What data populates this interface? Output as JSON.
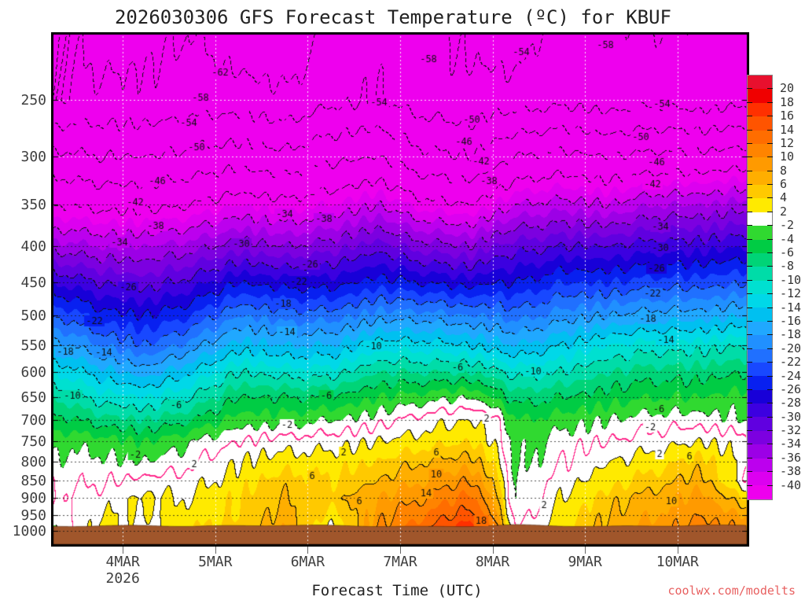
{
  "header": {
    "title": "2026030306 GFS Forecast Temperature (ºC) for KBUF"
  },
  "axes": {
    "xlabel": "Forecast Time (UTC)",
    "x_year": "2026"
  },
  "footer": {
    "watermark": "coolwx.com/modelts"
  },
  "colors": {
    "terrain": "#a0562b",
    "frame": "#000000",
    "zero_line": "#ff2b8d",
    "contour_line": "#101010",
    "watermark": "#e86060",
    "grid_light": "rgba(255,255,255,0.9)",
    "grid_dark": "rgba(20,20,20,0.75)"
  },
  "chart_data": {
    "type": "heatmap",
    "title": "2026030306 GFS Forecast Temperature (ºC) for KBUF",
    "xlabel": "Forecast Time (UTC)",
    "x_unit_hours_range": [
      0,
      180
    ],
    "times": [
      0,
      12,
      24,
      36,
      48,
      60,
      72,
      84,
      96,
      108,
      114,
      120,
      132,
      144,
      156,
      168,
      180
    ],
    "levels": [
      200,
      250,
      300,
      350,
      400,
      450,
      500,
      550,
      600,
      650,
      700,
      750,
      800,
      850,
      900,
      950,
      1000
    ],
    "temps": [
      [
        -57,
        -60,
        -59,
        -58,
        -61,
        -62,
        -57,
        -55,
        -57,
        -59,
        -60,
        -61,
        -55,
        -57,
        -58,
        -57,
        -57
      ],
      [
        -58,
        -57,
        -57,
        -56,
        -56,
        -57,
        -55,
        -54,
        -56,
        -57,
        -56,
        -56,
        -55,
        -56,
        -55,
        -56,
        -55
      ],
      [
        -49,
        -50,
        -50,
        -49,
        -48,
        -49,
        -47,
        -46,
        -49,
        -50,
        -48,
        -46,
        -45,
        -46,
        -45,
        -45,
        -44
      ],
      [
        -42,
        -43,
        -43,
        -42,
        -40,
        -41,
        -40,
        -38,
        -41,
        -42,
        -40,
        -38,
        -37,
        -38,
        -36,
        -36,
        -35
      ],
      [
        -35,
        -36,
        -36,
        -35,
        -33,
        -34,
        -33,
        -31,
        -33,
        -34,
        -32,
        -31,
        -30,
        -30,
        -29,
        -29,
        -28
      ],
      [
        -28,
        -30,
        -31,
        -29,
        -26,
        -27,
        -27,
        -25,
        -26,
        -27,
        -26,
        -26,
        -24,
        -24,
        -23,
        -23,
        -22
      ],
      [
        -22,
        -25,
        -26,
        -24,
        -20,
        -21,
        -21,
        -19,
        -19,
        -20,
        -20,
        -21,
        -19,
        -18,
        -17,
        -17,
        -16
      ],
      [
        -17,
        -20,
        -22,
        -19,
        -15,
        -16,
        -16,
        -13,
        -13,
        -14,
        -15,
        -16,
        -14,
        -12,
        -11,
        -11,
        -10
      ],
      [
        -12,
        -15,
        -17,
        -14,
        -10,
        -11,
        -11,
        -8,
        -8,
        -8,
        -9,
        -11,
        -10,
        -8,
        -7,
        -7,
        -6
      ],
      [
        -8,
        -11,
        -12,
        -10,
        -6,
        -6,
        -6,
        -4,
        -3,
        -2,
        -4,
        -7,
        -6,
        -5,
        -4,
        -4,
        -3
      ],
      [
        -5,
        -7,
        -8,
        -6,
        -3,
        -3,
        -2,
        -1,
        1,
        2,
        1,
        -4,
        -3,
        -2,
        -1,
        -1,
        -2
      ],
      [
        -2.5,
        -3,
        -4,
        -2,
        0,
        1,
        1,
        2,
        3,
        4,
        2,
        -3,
        -1,
        0,
        1,
        2,
        1
      ],
      [
        -1.5,
        -1.5,
        -2,
        -0.5,
        2,
        3,
        3,
        4,
        6,
        7,
        4,
        -3,
        0,
        2,
        3,
        5,
        1
      ],
      [
        -0.5,
        -0.5,
        0.5,
        1,
        3,
        5,
        4,
        6,
        8,
        10,
        6,
        -2.5,
        1,
        3,
        5,
        7,
        0
      ],
      [
        0,
        1,
        2.5,
        2,
        4,
        6,
        5,
        8,
        10,
        13,
        8,
        -2.5,
        2,
        5,
        7,
        9,
        4
      ],
      [
        -1,
        2,
        2,
        3,
        4,
        7,
        3,
        9,
        12,
        15,
        10,
        -1.5,
        3,
        6,
        8,
        10,
        8
      ],
      [
        -2.5,
        3,
        0.5,
        4,
        5,
        8,
        1,
        10,
        14,
        18.5,
        13,
        0,
        4,
        7,
        9,
        11,
        10
      ]
    ],
    "surface_pressure": [
      985,
      984,
      983,
      985,
      984,
      982,
      983,
      985,
      987,
      985,
      983,
      981,
      984,
      986,
      984,
      983,
      982
    ],
    "x_ticks": [
      {
        "hour": 18,
        "label": "4MAR",
        "sub": "2026"
      },
      {
        "hour": 42,
        "label": "5MAR"
      },
      {
        "hour": 66,
        "label": "6MAR"
      },
      {
        "hour": 90,
        "label": "7MAR"
      },
      {
        "hour": 114,
        "label": "8MAR"
      },
      {
        "hour": 138,
        "label": "9MAR"
      },
      {
        "hour": 162,
        "label": "10MAR"
      }
    ],
    "y_ticks": [
      250,
      300,
      350,
      400,
      450,
      500,
      550,
      600,
      650,
      700,
      750,
      800,
      850,
      900,
      950,
      1000
    ],
    "grid_pressures": [
      250,
      300,
      350,
      400,
      450,
      500,
      550,
      600,
      650,
      700,
      750,
      800,
      850,
      900,
      950,
      1000
    ],
    "thresholds": [
      20,
      18,
      16,
      14,
      12,
      10,
      8,
      6,
      4,
      2,
      -2,
      -4,
      -6,
      -8,
      -10,
      -12,
      -14,
      -16,
      -18,
      -20,
      -22,
      -24,
      -26,
      -28,
      -30,
      -32,
      -34,
      -36,
      -38,
      -40
    ],
    "band_colors": [
      "#e8102e",
      "#f00000",
      "#ff3000",
      "#ff5400",
      "#ff6d00",
      "#ff8400",
      "#ff9a00",
      "#ffae00",
      "#ffc900",
      "#ffea00",
      "#ffffff",
      "#30d930",
      "#00cc44",
      "#00d477",
      "#00dca8",
      "#00e0d0",
      "#00d8e8",
      "#00c0f0",
      "#20a8ff",
      "#2090ff",
      "#2070ff",
      "#1848ff",
      "#0820f0",
      "#1800d8",
      "#3c00e0",
      "#6000e0",
      "#7c00e0",
      "#9c00e6",
      "#bc00ee",
      "#dc00f0",
      "#ee00ee"
    ],
    "colorbar": {
      "values": [
        20,
        18,
        16,
        14,
        12,
        10,
        8,
        6,
        4,
        2,
        -2,
        -4,
        -6,
        -8,
        -10,
        -12,
        -14,
        -16,
        -18,
        -20,
        -22,
        -24,
        -26,
        -28,
        -30,
        -32,
        -34,
        -36,
        -38,
        -40
      ]
    },
    "contour_interval_lines": 4,
    "contour_interval_fill": 2,
    "contour_labels": [
      [
        -62,
        280,
        92
      ],
      [
        -58,
        255,
        124
      ],
      [
        -54,
        240,
        156
      ],
      [
        -50,
        250,
        187
      ],
      [
        -46,
        200,
        230
      ],
      [
        -42,
        172,
        257
      ],
      [
        -38,
        198,
        287
      ],
      [
        -34,
        152,
        308
      ],
      [
        -30,
        307,
        310
      ],
      [
        -26,
        163,
        365
      ],
      [
        -22,
        120,
        408
      ],
      [
        -18,
        83,
        447
      ],
      [
        -14,
        132,
        448
      ],
      [
        -10,
        92,
        503
      ],
      [
        -6,
        224,
        515
      ],
      [
        -2,
        172,
        578
      ],
      [
        -58,
        545,
        75
      ],
      [
        -54,
        663,
        66
      ],
      [
        -58,
        770,
        57
      ],
      [
        -54,
        482,
        130
      ],
      [
        -50,
        600,
        152
      ],
      [
        -46,
        590,
        180
      ],
      [
        -42,
        612,
        205
      ],
      [
        -38,
        622,
        230
      ],
      [
        -34,
        362,
        272
      ],
      [
        -38,
        412,
        278
      ],
      [
        -26,
        394,
        336
      ],
      [
        -22,
        380,
        358
      ],
      [
        -18,
        360,
        386
      ],
      [
        -14,
        365,
        422
      ],
      [
        -10,
        475,
        440
      ],
      [
        -6,
        582,
        467
      ],
      [
        -6,
        415,
        503
      ],
      [
        -2,
        365,
        540
      ],
      [
        -54,
        842,
        132
      ],
      [
        -50,
        815,
        174
      ],
      [
        -46,
        835,
        206
      ],
      [
        -42,
        830,
        234
      ],
      [
        -34,
        840,
        288
      ],
      [
        -30,
        840,
        315
      ],
      [
        -26,
        835,
        341
      ],
      [
        -22,
        830,
        373
      ],
      [
        -18,
        824,
        405
      ],
      [
        -14,
        847,
        432
      ],
      [
        -10,
        678,
        472
      ],
      [
        -6,
        838,
        520
      ],
      [
        -2,
        827,
        543
      ],
      [
        2,
        247,
        590
      ],
      [
        6,
        397,
        605
      ],
      [
        2,
        619,
        532
      ],
      [
        6,
        555,
        575
      ],
      [
        10,
        555,
        603
      ],
      [
        14,
        542,
        627
      ],
      [
        6,
        457,
        637
      ],
      [
        18,
        612,
        662
      ],
      [
        2,
        692,
        642
      ],
      [
        2,
        839,
        577
      ],
      [
        6,
        877,
        580
      ],
      [
        10,
        854,
        637
      ],
      [
        2,
        437,
        575
      ]
    ]
  }
}
